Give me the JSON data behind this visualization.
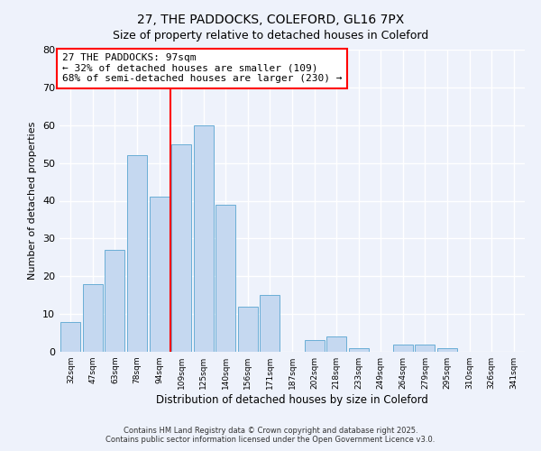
{
  "title": "27, THE PADDOCKS, COLEFORD, GL16 7PX",
  "subtitle": "Size of property relative to detached houses in Coleford",
  "xlabel": "Distribution of detached houses by size in Coleford",
  "ylabel": "Number of detached properties",
  "bar_labels": [
    "32sqm",
    "47sqm",
    "63sqm",
    "78sqm",
    "94sqm",
    "109sqm",
    "125sqm",
    "140sqm",
    "156sqm",
    "171sqm",
    "187sqm",
    "202sqm",
    "218sqm",
    "233sqm",
    "249sqm",
    "264sqm",
    "279sqm",
    "295sqm",
    "310sqm",
    "326sqm",
    "341sqm"
  ],
  "bar_values": [
    8,
    18,
    27,
    52,
    41,
    55,
    60,
    39,
    12,
    15,
    0,
    3,
    4,
    1,
    0,
    2,
    2,
    1,
    0,
    0,
    0
  ],
  "bar_color": "#c5d8f0",
  "bar_edge_color": "#6aaed6",
  "vline_x": 4.5,
  "vline_color": "red",
  "ylim": [
    0,
    80
  ],
  "yticks": [
    0,
    10,
    20,
    30,
    40,
    50,
    60,
    70,
    80
  ],
  "annotation_title": "27 THE PADDOCKS: 97sqm",
  "annotation_line1": "← 32% of detached houses are smaller (109)",
  "annotation_line2": "68% of semi-detached houses are larger (230) →",
  "annotation_box_color": "white",
  "annotation_box_edge": "red",
  "footer_line1": "Contains HM Land Registry data © Crown copyright and database right 2025.",
  "footer_line2": "Contains public sector information licensed under the Open Government Licence v3.0.",
  "background_color": "#eef2fb",
  "grid_color": "white",
  "title_fontsize": 10,
  "subtitle_fontsize": 9,
  "xlabel_fontsize": 8.5,
  "ylabel_fontsize": 8,
  "annotation_fontsize": 8,
  "footer_fontsize": 6
}
